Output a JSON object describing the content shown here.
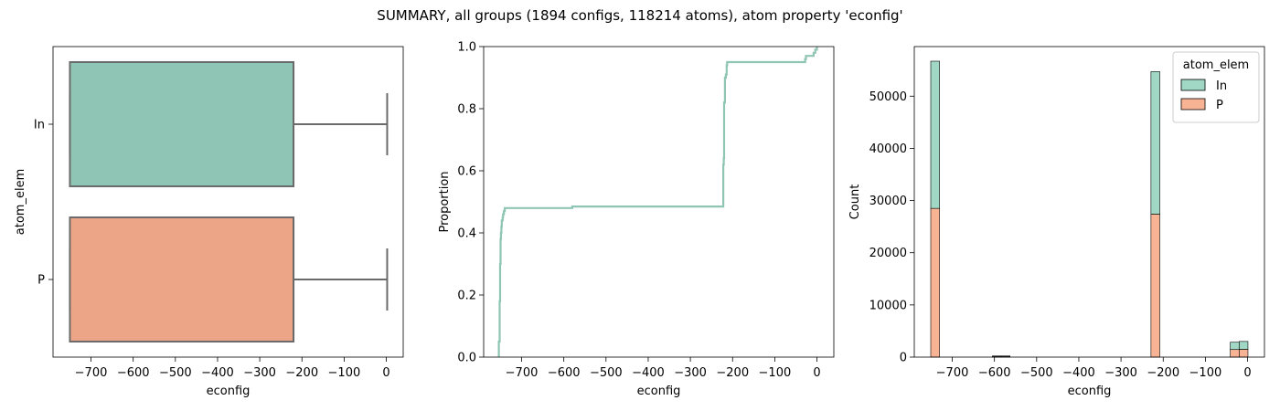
{
  "figure": {
    "suptitle": "SUMMARY, all groups (1894 configs, 118214 atoms), atom property 'econfig'"
  },
  "colors": {
    "In": "#8fc5b4",
    "P": "#eca586",
    "hist_In": "#a1d8c5",
    "hist_P": "#f8b395",
    "box_line": "#6b6b6b"
  },
  "chart_data": [
    {
      "type": "box",
      "orientation": "horizontal",
      "xlabel": "econfig",
      "ylabel": "atom_elem",
      "xlim": [
        -790,
        40
      ],
      "xticks": [
        -700,
        -600,
        -500,
        -400,
        -300,
        -200,
        -100,
        0
      ],
      "xtick_labels": [
        "−700",
        "−600",
        "−500",
        "−400",
        "−300",
        "−200",
        "−100",
        "0"
      ],
      "categories": [
        "In",
        "P"
      ],
      "boxes": [
        {
          "name": "In",
          "whisker_low": -750,
          "q1": -750,
          "median": -220,
          "q3": -220,
          "whisker_high": 2
        },
        {
          "name": "P",
          "whisker_low": -750,
          "q1": -750,
          "median": -220,
          "q3": -220,
          "whisker_high": 2
        }
      ]
    },
    {
      "type": "line",
      "subtype": "ecdf",
      "xlabel": "econfig",
      "ylabel": "Proportion",
      "xlim": [
        -790,
        40
      ],
      "ylim": [
        0,
        1
      ],
      "xticks": [
        -700,
        -600,
        -500,
        -400,
        -300,
        -200,
        -100,
        0
      ],
      "xtick_labels": [
        "−700",
        "−600",
        "−500",
        "−400",
        "−300",
        "−200",
        "−100",
        "0"
      ],
      "yticks": [
        0,
        0.2,
        0.4,
        0.6,
        0.8,
        1.0
      ],
      "ytick_labels": [
        "0.0",
        "0.2",
        "0.4",
        "0.6",
        "0.8",
        "1.0"
      ],
      "series": [
        {
          "x": [
            -755,
            -754,
            -752,
            -751,
            -750,
            -749,
            -748,
            -747,
            -746,
            -745,
            -744,
            -742,
            -740,
            -738,
            -600,
            -580,
            -230,
            -222,
            -222,
            -221,
            -220,
            -218,
            -216,
            -214,
            -213,
            -212,
            -30,
            -28,
            -26,
            -10,
            -8,
            -6,
            -4,
            0
          ],
          "y": [
            0,
            0.05,
            0.18,
            0.3,
            0.38,
            0.4,
            0.42,
            0.44,
            0.44,
            0.45,
            0.46,
            0.47,
            0.48,
            0.48,
            0.48,
            0.485,
            0.485,
            0.485,
            0.62,
            0.64,
            0.82,
            0.9,
            0.91,
            0.94,
            0.95,
            0.95,
            0.95,
            0.96,
            0.97,
            0.97,
            0.98,
            0.98,
            0.99,
            1.0
          ]
        }
      ]
    },
    {
      "type": "bar",
      "subtype": "stacked-histogram",
      "xlabel": "econfig",
      "ylabel": "Count",
      "xlim": [
        -790,
        40
      ],
      "ylim": [
        0,
        59500
      ],
      "xticks": [
        -700,
        -600,
        -500,
        -400,
        -300,
        -200,
        -100,
        0
      ],
      "xtick_labels": [
        "−700",
        "−600",
        "−500",
        "−400",
        "−300",
        "−200",
        "−100",
        "0"
      ],
      "yticks": [
        0,
        10000,
        20000,
        30000,
        40000,
        50000
      ],
      "ytick_labels": [
        "0",
        "10000",
        "20000",
        "30000",
        "40000",
        "50000"
      ],
      "bin_width": 20.9,
      "legend": {
        "title": "atom_elem",
        "entries": [
          "In",
          "P"
        ],
        "placement": "top-right"
      },
      "bins": [
        {
          "x0": -751,
          "In": 28200,
          "P": 28500
        },
        {
          "x0": -605,
          "In": 120,
          "P": 100
        },
        {
          "x0": -584,
          "In": 120,
          "P": 100
        },
        {
          "x0": -229,
          "In": 27300,
          "P": 27400
        },
        {
          "x0": -41,
          "In": 1400,
          "P": 1450
        },
        {
          "x0": -20,
          "In": 1500,
          "P": 1500
        }
      ]
    }
  ]
}
